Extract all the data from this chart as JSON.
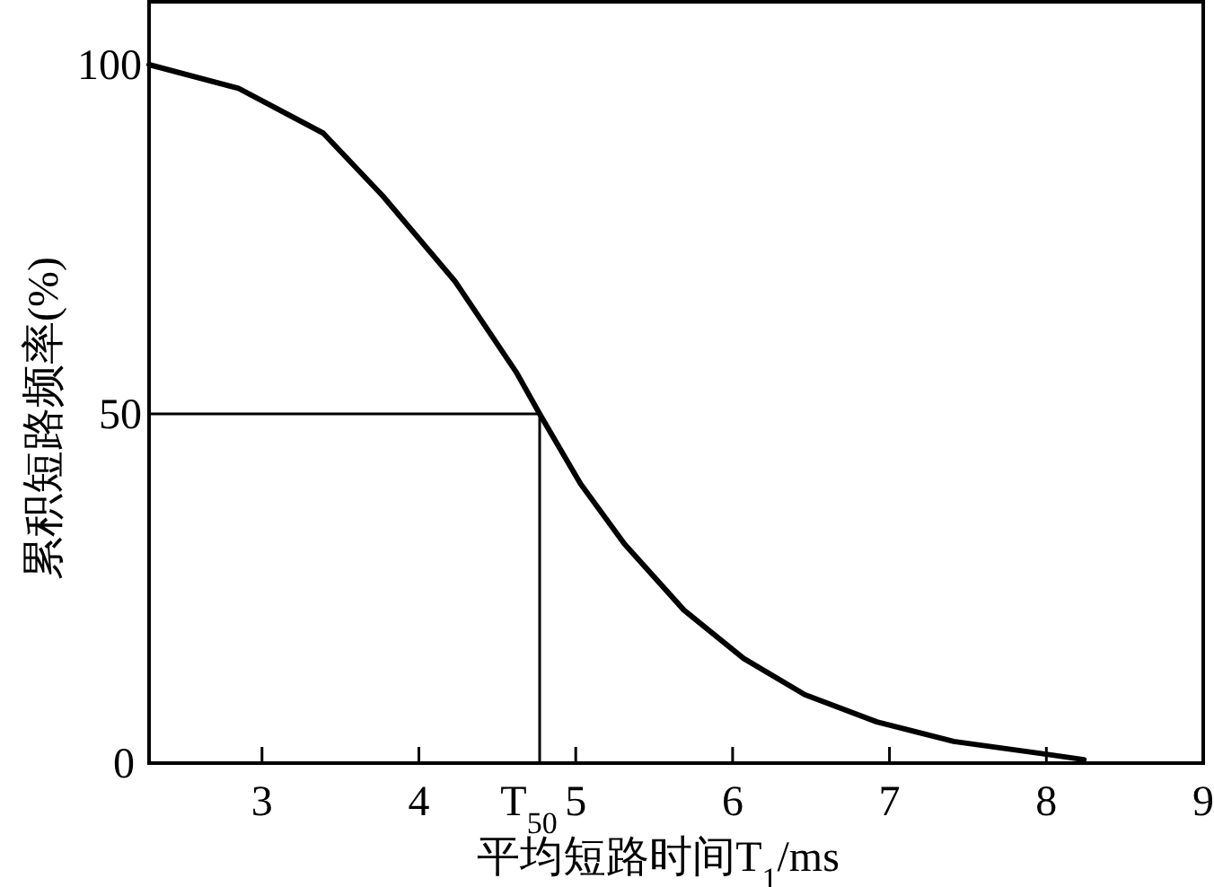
{
  "chart_data": {
    "type": "line",
    "xlabel": "平均短路时间T$_{1}$/ms",
    "ylabel": "累积短路频率(%)",
    "xlim": [
      2.28,
      9
    ],
    "ylim": [
      0,
      109
    ],
    "xticks": [
      3,
      4,
      5,
      6,
      7,
      8,
      9
    ],
    "yticks": [
      0,
      50,
      100
    ],
    "annotations": [
      {
        "text": "T$_{50}$",
        "x": 4.77,
        "y": 0
      }
    ],
    "series": [
      {
        "color": "#000000",
        "x": [
          2.28,
          2.85,
          3.39,
          3.77,
          4.23,
          4.62,
          4.77,
          5.03,
          5.31,
          5.69,
          6.07,
          6.46,
          6.92,
          7.41,
          7.99,
          8.24
        ],
        "values": [
          100,
          96.6,
          90.2,
          81.2,
          69,
          56,
          50,
          40,
          31.4,
          21.9,
          15,
          9.8,
          5.9,
          3.1,
          1.3,
          0.5
        ]
      },
      {
        "color": "#000000",
        "x": [
          2.28,
          4.77,
          4.77
        ],
        "values": [
          50,
          50,
          0
        ]
      }
    ]
  }
}
